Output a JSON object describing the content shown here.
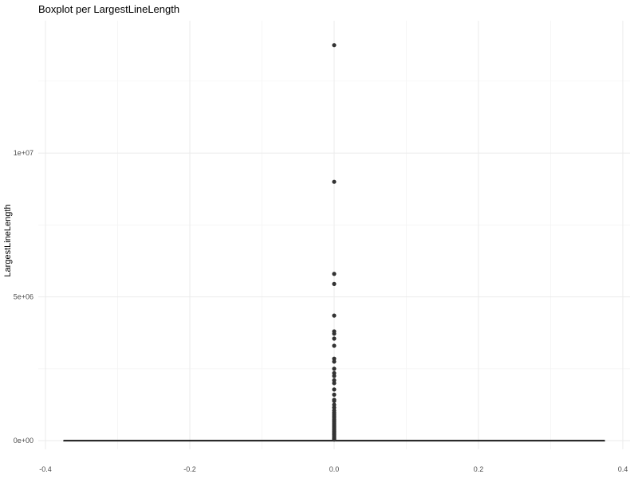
{
  "chart_data": {
    "type": "boxplot",
    "title": "Boxplot per LargestLineLength",
    "xlabel": "",
    "ylabel": "LargestLineLength",
    "xlim": [
      -0.41,
      0.41
    ],
    "ylim": [
      -300000,
      14600000
    ],
    "x_ticks": [
      -0.4,
      -0.2,
      0.0,
      0.2,
      0.4
    ],
    "x_tick_labels": [
      "-0.4",
      "-0.2",
      "0.0",
      "0.2",
      "0.4"
    ],
    "y_ticks": [
      0,
      5000000,
      10000000
    ],
    "y_tick_labels": [
      "0e+00",
      "5e+06",
      "1e+07"
    ],
    "grid": true,
    "legend": "none",
    "box": {
      "x": 0,
      "width": 0.75,
      "median": 0,
      "q1": 0,
      "q3": 0,
      "whisker_low": 0,
      "whisker_high": 0
    },
    "outliers": [
      13750000,
      9000000,
      5800000,
      5450000,
      4350000,
      3800000,
      3720000,
      3550000,
      3300000,
      2850000,
      2750000,
      2500000,
      2350000,
      2250000,
      2100000,
      2000000,
      1780000,
      1600000,
      1420000,
      1380000,
      1250000,
      1150000,
      1050000,
      980000,
      920000,
      860000,
      800000,
      740000,
      690000,
      640000,
      590000,
      540000,
      490000,
      450000,
      410000,
      370000,
      330000,
      290000,
      250000,
      210000,
      170000,
      130000,
      100000,
      70000,
      40000
    ],
    "colors": {
      "points": "#333333",
      "box": "#333333",
      "median": "#1a1a1a"
    }
  }
}
